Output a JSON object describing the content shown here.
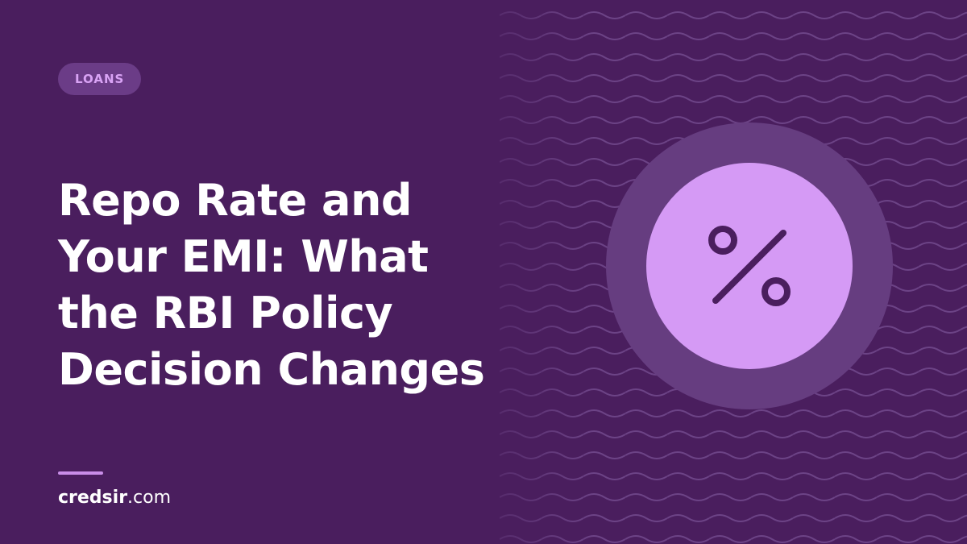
{
  "tag": "LOANS",
  "title_lines": [
    "Repo Rate and",
    "Your EMI: What",
    "the RBI Policy",
    "Decision Changes"
  ],
  "site": {
    "name": "credsir",
    "suffix": ".com"
  }
}
